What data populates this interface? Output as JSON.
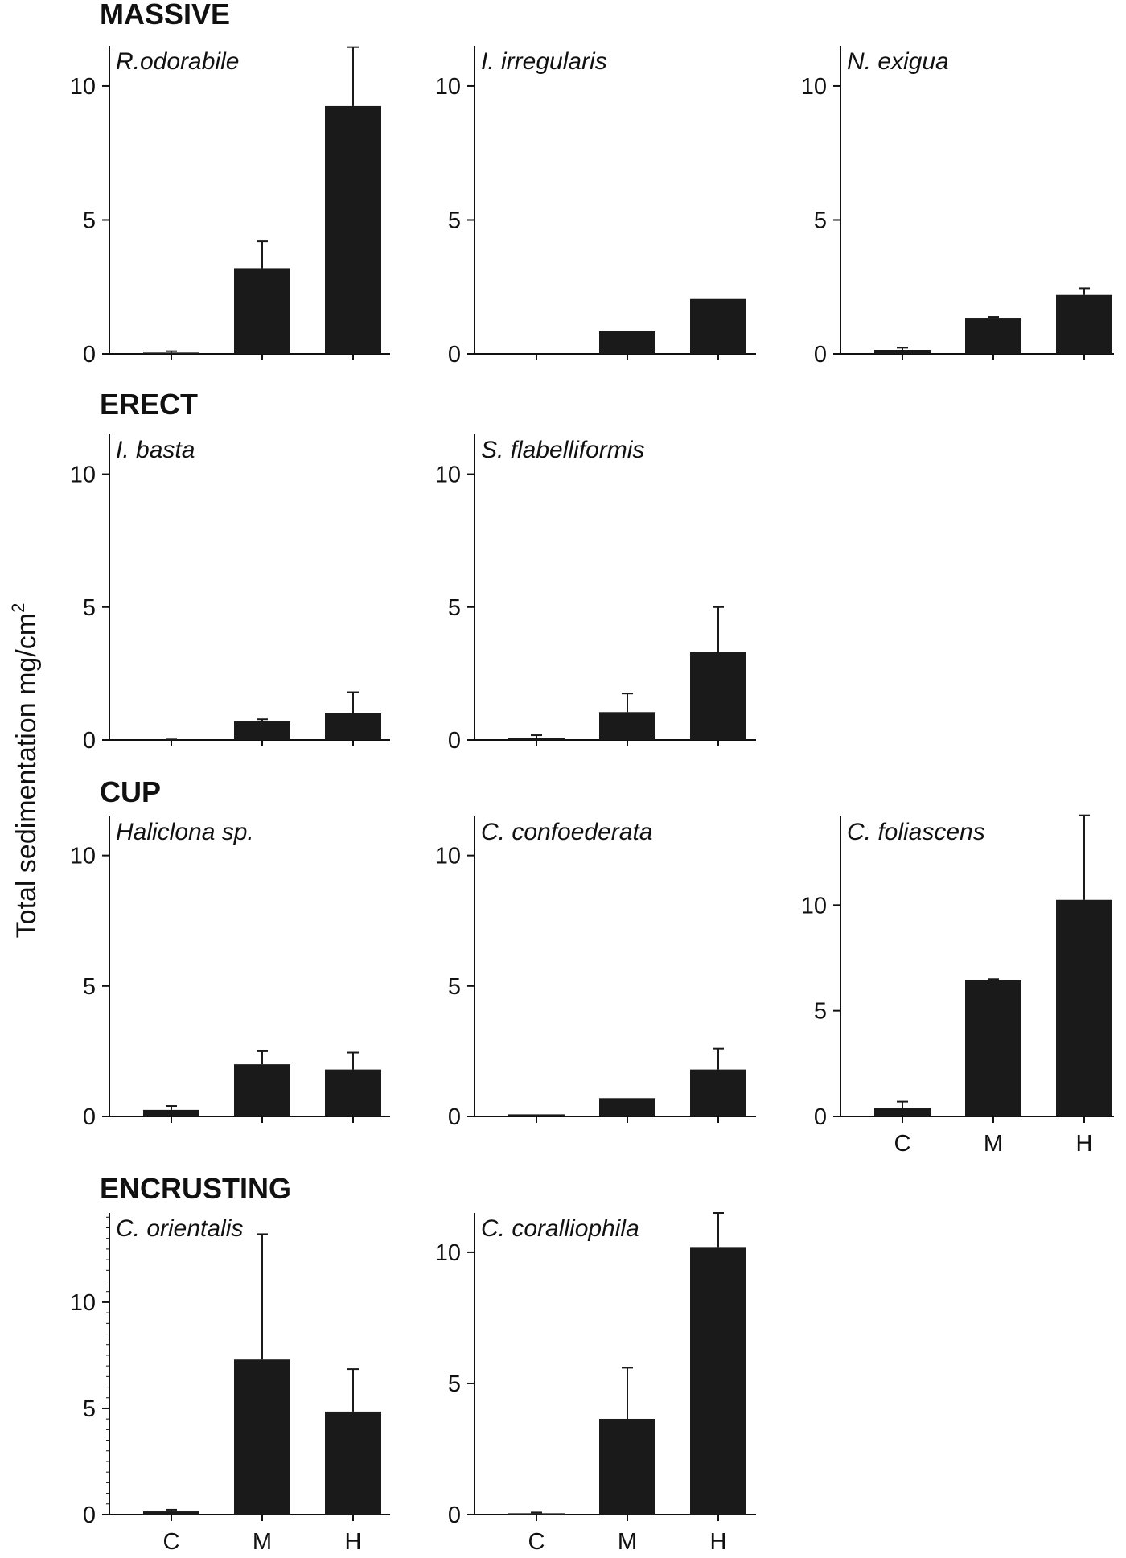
{
  "figure": {
    "ylabel": "Total sedimentation mg/cm",
    "ylabel_superscript": "2",
    "groups": [
      {
        "title": "MASSIVE"
      },
      {
        "title": "ERECT"
      },
      {
        "title": "CUP"
      },
      {
        "title": "ENCRUSTING"
      }
    ]
  },
  "chart_data": [
    {
      "type": "bar",
      "group": "MASSIVE",
      "title": "R.odorabile",
      "categories": [
        "C",
        "M",
        "H"
      ],
      "values": [
        0.05,
        3.2,
        9.25
      ],
      "errors": [
        0.05,
        1.0,
        2.2
      ],
      "ylim": [
        0,
        11.5
      ],
      "yticks": [
        0,
        5,
        10
      ],
      "show_category_labels": false
    },
    {
      "type": "bar",
      "group": "MASSIVE",
      "title": "I. irregularis",
      "categories": [
        "C",
        "M",
        "H"
      ],
      "values": [
        0,
        0.85,
        2.05
      ],
      "errors": [
        0,
        0,
        0
      ],
      "ylim": [
        0,
        11.5
      ],
      "yticks": [
        0,
        5,
        10
      ],
      "show_category_labels": false
    },
    {
      "type": "bar",
      "group": "MASSIVE",
      "title": "N. exigua",
      "categories": [
        "C",
        "M",
        "H"
      ],
      "values": [
        0.15,
        1.35,
        2.2
      ],
      "errors": [
        0.08,
        0.03,
        0.25
      ],
      "ylim": [
        0,
        11.5
      ],
      "yticks": [
        0,
        5,
        10
      ],
      "show_category_labels": false
    },
    {
      "type": "bar",
      "group": "ERECT",
      "title": "I. basta",
      "categories": [
        "C",
        "M",
        "H"
      ],
      "values": [
        0,
        0.7,
        1.0
      ],
      "errors": [
        0.02,
        0.08,
        0.8
      ],
      "ylim": [
        0,
        11.5
      ],
      "yticks": [
        0,
        5,
        10
      ],
      "show_category_labels": false
    },
    {
      "type": "bar",
      "group": "ERECT",
      "title": "S. flabelliformis",
      "categories": [
        "C",
        "M",
        "H"
      ],
      "values": [
        0.08,
        1.05,
        3.3
      ],
      "errors": [
        0.1,
        0.7,
        1.7
      ],
      "ylim": [
        0,
        11.5
      ],
      "yticks": [
        0,
        5,
        10
      ],
      "show_category_labels": false
    },
    {
      "type": "bar",
      "group": "CUP",
      "title": "Haliclona sp.",
      "categories": [
        "C",
        "M",
        "H"
      ],
      "values": [
        0.25,
        2.0,
        1.8
      ],
      "errors": [
        0.15,
        0.5,
        0.65
      ],
      "ylim": [
        0,
        11.5
      ],
      "yticks": [
        0,
        5,
        10
      ],
      "show_category_labels": false
    },
    {
      "type": "bar",
      "group": "CUP",
      "title": "C. confoederata",
      "categories": [
        "C",
        "M",
        "H"
      ],
      "values": [
        0.08,
        0.7,
        1.8
      ],
      "errors": [
        0,
        0,
        0.8
      ],
      "ylim": [
        0,
        11.5
      ],
      "yticks": [
        0,
        5,
        10
      ],
      "show_category_labels": false
    },
    {
      "type": "bar",
      "group": "CUP",
      "title": "C. foliascens",
      "categories": [
        "C",
        "M",
        "H"
      ],
      "values": [
        0.4,
        6.45,
        10.25
      ],
      "errors": [
        0.3,
        0.05,
        4.0
      ],
      "ylim": [
        0,
        14.2
      ],
      "yticks": [
        0,
        5,
        10
      ],
      "show_category_labels": true
    },
    {
      "type": "bar",
      "group": "ENCRUSTING",
      "title": "C. orientalis",
      "categories": [
        "C",
        "M",
        "H"
      ],
      "values": [
        0.15,
        7.3,
        4.85
      ],
      "errors": [
        0.08,
        5.9,
        2.0
      ],
      "ylim": [
        0,
        14.2
      ],
      "yticks": [
        0,
        5,
        10
      ],
      "minor_ticks": true,
      "show_category_labels": true
    },
    {
      "type": "bar",
      "group": "ENCRUSTING",
      "title": "C. coralliophila",
      "categories": [
        "C",
        "M",
        "H"
      ],
      "values": [
        0.05,
        3.65,
        10.2
      ],
      "errors": [
        0.03,
        1.95,
        1.3
      ],
      "ylim": [
        0,
        11.5
      ],
      "yticks": [
        0,
        5,
        10
      ],
      "show_category_labels": true
    }
  ]
}
